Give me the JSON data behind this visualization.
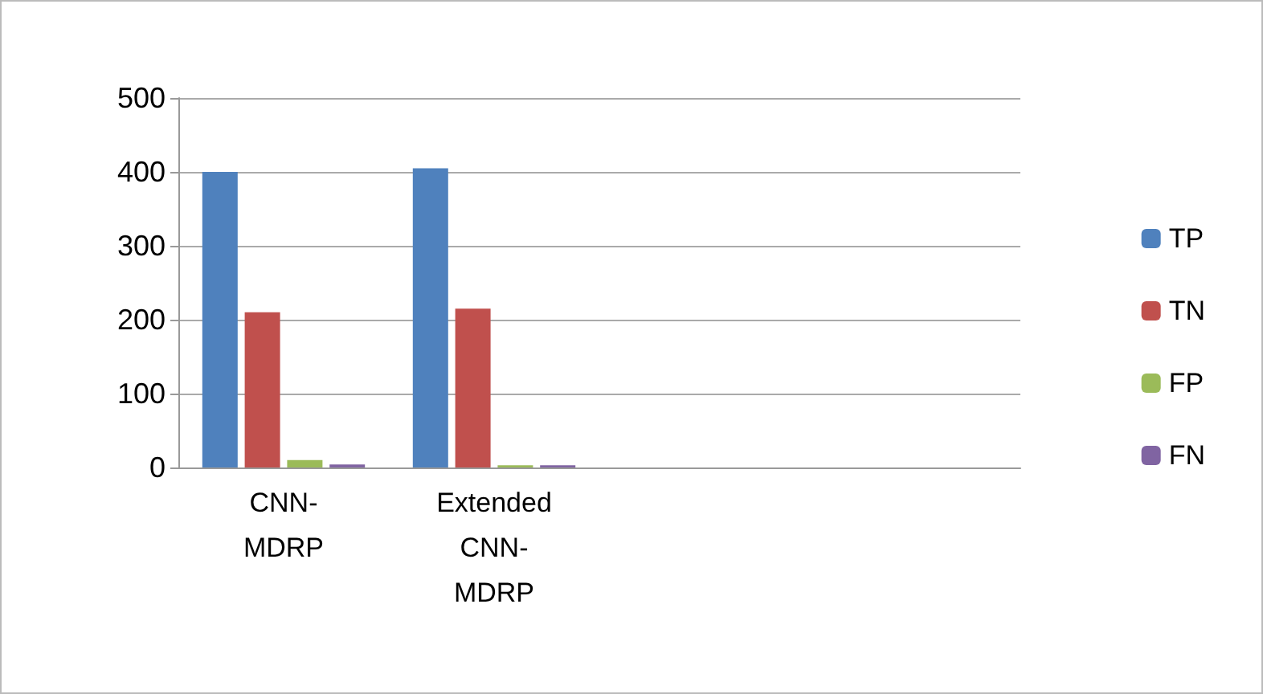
{
  "chart_data": {
    "type": "bar",
    "categories": [
      "CNN-MDRP",
      "Extended CNN-MDRP",
      null,
      null
    ],
    "series": [
      {
        "name": "TP",
        "color": "#4f81bd",
        "values": [
          400,
          405,
          null,
          null
        ]
      },
      {
        "name": "TN",
        "color": "#c0504d",
        "values": [
          210,
          215,
          null,
          null
        ]
      },
      {
        "name": "FP",
        "color": "#9bbb59",
        "values": [
          10,
          3,
          null,
          null
        ]
      },
      {
        "name": "FN",
        "color": "#8064a2",
        "values": [
          4,
          3,
          null,
          null
        ]
      }
    ],
    "ylim": [
      0,
      500
    ],
    "yticks": [
      0,
      100,
      200,
      300,
      400,
      500
    ],
    "grid": "y",
    "legend": "right"
  }
}
